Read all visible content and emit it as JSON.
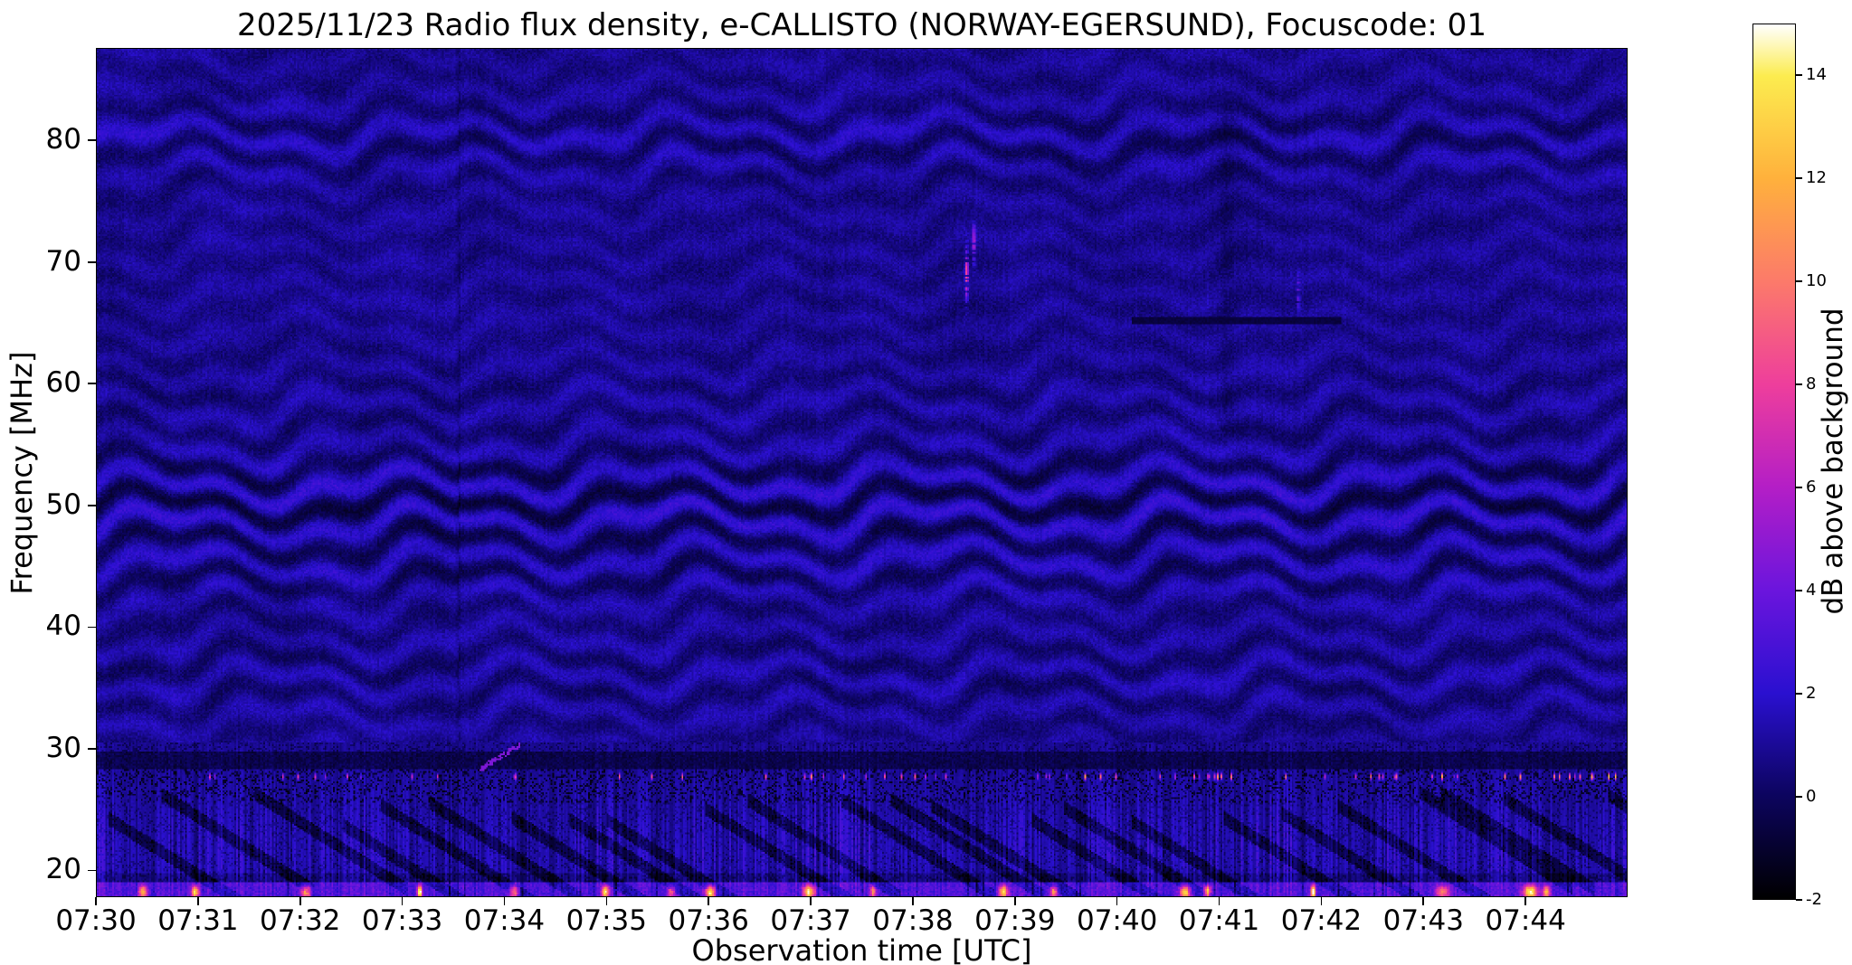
{
  "chart_data": {
    "type": "heatmap",
    "title": "2025/11/23  Radio flux density, e-CALLISTO (NORWAY-EGERSUND), Focuscode: 01",
    "xlabel": "Observation time [UTC]",
    "ylabel": "Frequency [MHz]",
    "x_ticks": [
      "07:30",
      "07:31",
      "07:32",
      "07:33",
      "07:34",
      "07:35",
      "07:36",
      "07:37",
      "07:38",
      "07:39",
      "07:40",
      "07:41",
      "07:42",
      "07:43",
      "07:44"
    ],
    "x_start_utc": "07:30",
    "duration_min": 15,
    "y_ticks": [
      20,
      30,
      40,
      50,
      60,
      70,
      80
    ],
    "y_range_mhz": [
      17.8,
      87.6
    ],
    "grid": false,
    "colorbar": {
      "label": "dB above background",
      "ticks": [
        -2,
        0,
        2,
        4,
        6,
        8,
        10,
        12,
        14
      ],
      "range": [
        -2,
        15
      ],
      "stops": [
        {
          "db": -2,
          "color": "#000000"
        },
        {
          "db": 0,
          "color": "#0c045e"
        },
        {
          "db": 2,
          "color": "#2a10d0"
        },
        {
          "db": 4,
          "color": "#6b15dd"
        },
        {
          "db": 6,
          "color": "#b41ec6"
        },
        {
          "db": 8,
          "color": "#ee3e9c"
        },
        {
          "db": 10,
          "color": "#fc7a6a"
        },
        {
          "db": 12,
          "color": "#ffb13c"
        },
        {
          "db": 14,
          "color": "#fcec4f"
        },
        {
          "db": 15,
          "color": "#ffffff"
        }
      ]
    },
    "features": {
      "background_db": 0.9,
      "noise_db": 0.5,
      "ripple": {
        "period_mhz": 3.2,
        "base_amp_db": 0.35,
        "bands": [
          {
            "center_mhz": 50,
            "sigma_mhz": 4.5,
            "amp_db": 1.15
          },
          {
            "center_mhz": 80,
            "sigma_mhz": 3.0,
            "amp_db": 0.6
          },
          {
            "center_mhz": 36,
            "sigma_mhz": 4.0,
            "amp_db": 0.45
          },
          {
            "center_mhz": 59,
            "sigma_mhz": 2.5,
            "amp_db": 0.25
          },
          {
            "center_mhz": 44,
            "sigma_mhz": 2.0,
            "amp_db": 0.5
          }
        ]
      },
      "low_band": {
        "top_mhz": 30.5,
        "stripe_amp_db": 1.7,
        "dark_band": {
          "f_lo": 28.2,
          "f_hi": 29.7,
          "db": -0.9
        },
        "dot_row": {
          "f_mhz": 27.65,
          "fraction": 0.1,
          "db_min": 4,
          "db_max": 13
        },
        "bottom_bright": {
          "f_hi": 18.9,
          "db": 2.2
        }
      },
      "diagonal_streaks": {
        "count": 24,
        "f_start_mhz": 26.5,
        "slope_mhz_per_min": -5.3,
        "length_min": 1.5,
        "depth_db": 1.6
      },
      "bright_blobs": {
        "count": 18,
        "f_mhz": 18.15,
        "db_min": 5,
        "db_max": 13
      },
      "transients": [
        {
          "t_min": 8.53,
          "f_center_mhz": 69.0,
          "f_sigma_mhz": 2.0,
          "peak_db": 8.5
        },
        {
          "t_min": 8.6,
          "f_center_mhz": 71.5,
          "f_sigma_mhz": 1.6,
          "peak_db": 6.0
        },
        {
          "t_min": 11.78,
          "f_center_mhz": 67.5,
          "f_sigma_mhz": 1.5,
          "peak_db": 3.5
        }
      ],
      "rising_streak": {
        "t0_min": 3.75,
        "t1_min": 4.15,
        "f0_mhz": 28.2,
        "f1_mhz": 30.3,
        "db": 4.5
      },
      "dark_line": {
        "f_mhz": 65.2,
        "t0_min": 10.15,
        "t1_min": 12.2,
        "db": -0.9
      },
      "dark_column": {
        "t_min": 11.08,
        "sigma_min": 0.1,
        "f_lo_mhz": 56,
        "f_hi_mhz": 83,
        "delta_db": -0.55
      },
      "segment_boundary_t_min": 3.55
    }
  }
}
